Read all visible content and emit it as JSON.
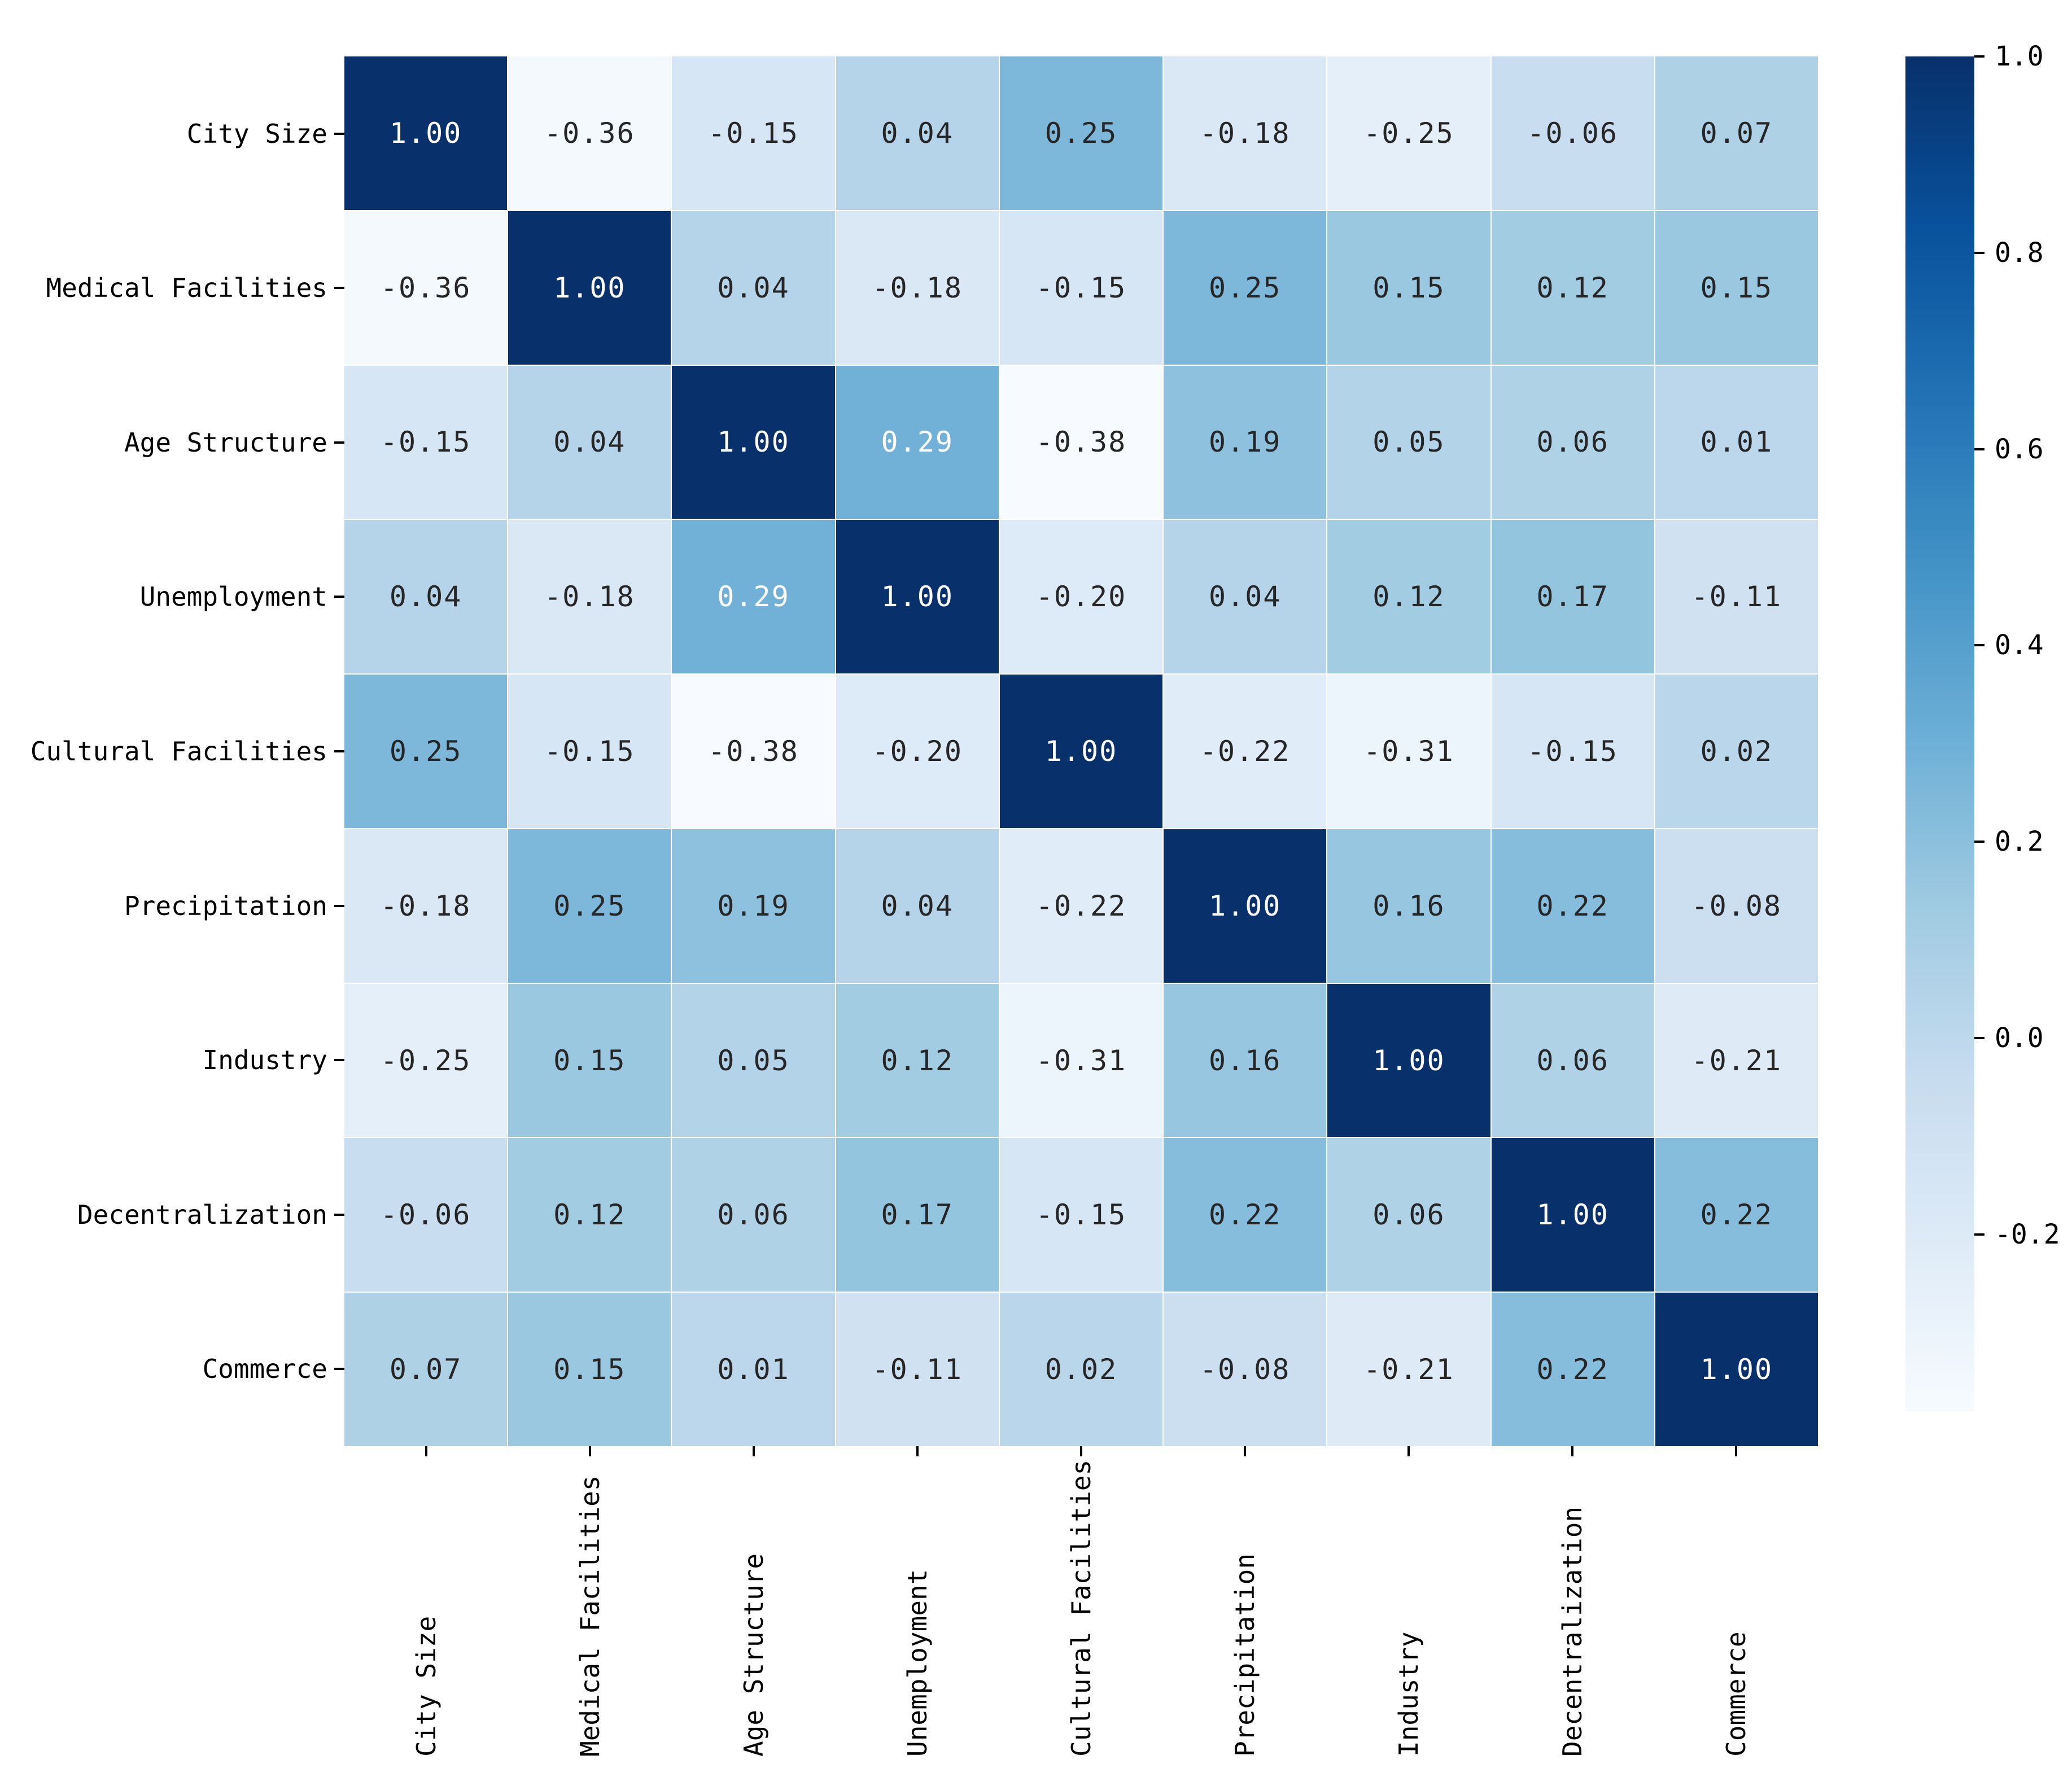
{
  "figure": {
    "background": "#ffffff"
  },
  "chart_data": {
    "type": "heatmap",
    "title": "",
    "categories": [
      "City Size",
      "Medical Facilities",
      "Age Structure",
      "Unemployment",
      "Cultural Facilities",
      "Precipitation",
      "Industry",
      "Decentralization",
      "Commerce"
    ],
    "matrix": [
      [
        1.0,
        -0.36,
        -0.15,
        0.04,
        0.25,
        -0.18,
        -0.25,
        -0.06,
        0.07
      ],
      [
        -0.36,
        1.0,
        0.04,
        -0.18,
        -0.15,
        0.25,
        0.15,
        0.12,
        0.15
      ],
      [
        -0.15,
        0.04,
        1.0,
        0.29,
        -0.38,
        0.19,
        0.05,
        0.06,
        0.01
      ],
      [
        0.04,
        -0.18,
        0.29,
        1.0,
        -0.2,
        0.04,
        0.12,
        0.17,
        -0.11
      ],
      [
        0.25,
        -0.15,
        -0.38,
        -0.2,
        1.0,
        -0.22,
        -0.31,
        -0.15,
        0.02
      ],
      [
        -0.18,
        0.25,
        0.19,
        0.04,
        -0.22,
        1.0,
        0.16,
        0.22,
        -0.08
      ],
      [
        -0.25,
        0.15,
        0.05,
        0.12,
        -0.31,
        0.16,
        1.0,
        0.06,
        -0.21
      ],
      [
        -0.06,
        0.12,
        0.06,
        0.17,
        -0.15,
        0.22,
        0.06,
        1.0,
        0.22
      ],
      [
        0.07,
        0.15,
        0.01,
        -0.11,
        0.02,
        -0.08,
        -0.21,
        0.22,
        1.0
      ]
    ],
    "value_decimals": 2,
    "vmin": -0.38,
    "vmax": 1.0,
    "colormap": "Blues",
    "colormap_stops": [
      "#f7fbff",
      "#deebf7",
      "#c6dbef",
      "#9ecae1",
      "#6baed6",
      "#4292c6",
      "#2171b5",
      "#08519c",
      "#08306b"
    ],
    "annotation_colors": {
      "dark": "#262626",
      "light": "#ffffff"
    },
    "x_tick_rotation_deg": 90,
    "grid": "off",
    "colorbar": {
      "position": "right",
      "tick_labels": [
        "1.0",
        "0.8",
        "0.6",
        "0.4",
        "0.2",
        "0.0",
        "-0.2"
      ],
      "tick_values": [
        1.0,
        0.8,
        0.6,
        0.4,
        0.2,
        0.0,
        -0.2
      ]
    }
  }
}
